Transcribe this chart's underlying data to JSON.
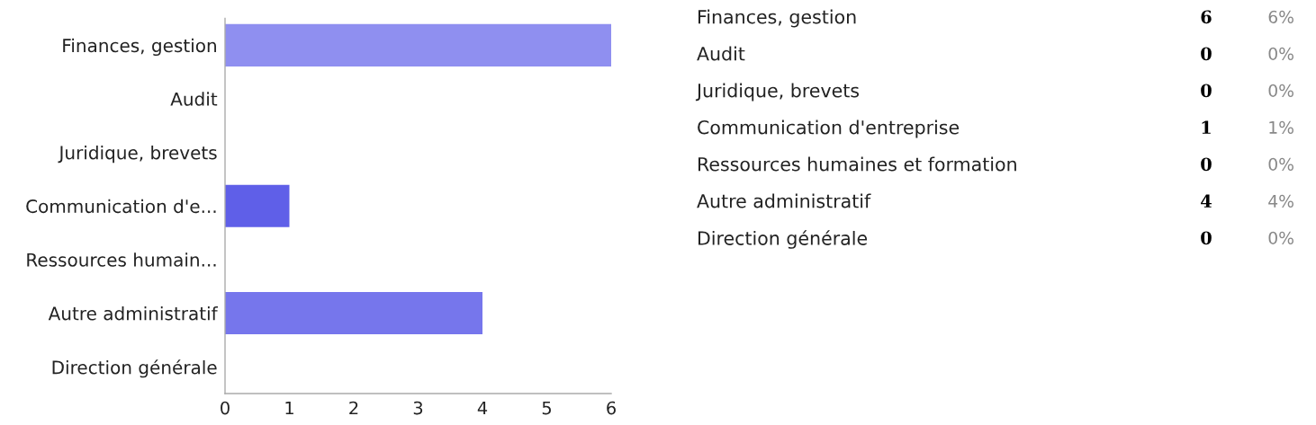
{
  "chart_data": [
    {
      "type": "bar",
      "orientation": "horizontal",
      "categories": [
        "Finances, gestion",
        "Audit",
        "Juridique, brevets",
        "Communication d'e...",
        "Ressources humain...",
        "Autre administratif",
        "Direction générale"
      ],
      "values": [
        6,
        0,
        0,
        1,
        0,
        4,
        0
      ],
      "colors": [
        "#8f8ff0",
        null,
        null,
        "#5f5fe8",
        null,
        "#7676ec",
        null
      ],
      "xlim": [
        0,
        6
      ],
      "xticks": [
        0,
        1,
        2,
        3,
        4,
        5,
        6
      ]
    },
    {
      "type": "other",
      "categories": [
        "Finances, gestion",
        "Audit",
        "Juridique, brevets",
        "Communication d'entreprise",
        "Ressources humaines et formation",
        "Autre administratif",
        "Direction générale"
      ],
      "series": [
        {
          "values": [
            6,
            0,
            0,
            1,
            0,
            4,
            0
          ]
        },
        {
          "values": [
            6,
            0,
            0,
            1,
            0,
            4,
            0
          ],
          "value_labels": [
            "6%",
            "0%",
            "0%",
            "1%",
            "0%",
            "4%",
            "0%"
          ]
        }
      ],
      "data_labels": true
    }
  ]
}
